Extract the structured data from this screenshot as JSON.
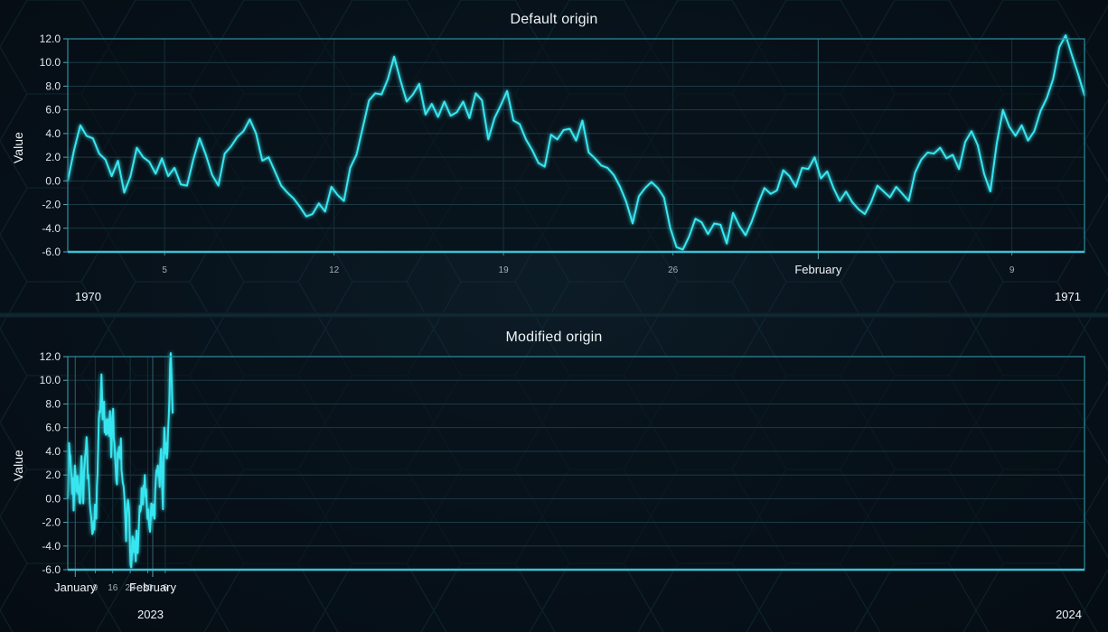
{
  "chart_data": [
    {
      "type": "line",
      "title": "Default origin",
      "ylabel": "Value",
      "ylim": [
        -6.0,
        12.0
      ],
      "yticks": [
        "12.0",
        "10.0",
        "8.0",
        "6.0",
        "4.0",
        "2.0",
        "0.0",
        "-2.0",
        "-4.0",
        "-6.0"
      ],
      "x_axis": "date",
      "x_range": [
        "1970-01-01",
        "1970-02-12"
      ],
      "x_minor_ticks": [
        {
          "date": "1970-01-05",
          "label": "5"
        },
        {
          "date": "1970-01-12",
          "label": "12"
        },
        {
          "date": "1970-01-19",
          "label": "19"
        },
        {
          "date": "1970-01-26",
          "label": "26"
        },
        {
          "date": "1970-02-09",
          "label": "9"
        }
      ],
      "x_major_ticks": [
        {
          "date": "1970-02-01",
          "label": "February"
        }
      ],
      "year_labels": [
        "1970",
        "1971"
      ],
      "series": [
        {
          "color": "#37e6f0",
          "x_start": "1970-01-01",
          "x_end": "1970-02-12",
          "values": [
            0.0,
            2.6,
            4.7,
            3.8,
            3.6,
            2.3,
            1.8,
            0.4,
            1.7,
            -1.0,
            0.4,
            2.8,
            2.0,
            1.6,
            0.6,
            1.9,
            0.4,
            1.1,
            -0.3,
            -0.4,
            1.8,
            3.6,
            2.2,
            0.5,
            -0.4,
            2.3,
            2.9,
            3.7,
            4.2,
            5.2,
            4.0,
            1.7,
            2.0,
            0.8,
            -0.4,
            -1.0,
            -1.5,
            -2.2,
            -3.0,
            -2.8,
            -1.9,
            -2.6,
            -0.5,
            -1.2,
            -1.7,
            1.1,
            2.2,
            4.5,
            6.8,
            7.4,
            7.3,
            8.6,
            10.5,
            8.5,
            6.7,
            7.3,
            8.2,
            5.6,
            6.5,
            5.4,
            6.7,
            5.5,
            5.8,
            6.7,
            5.3,
            7.4,
            6.8,
            3.5,
            5.3,
            6.4,
            7.6,
            5.1,
            4.8,
            3.5,
            2.6,
            1.5,
            1.2,
            3.9,
            3.5,
            4.3,
            4.4,
            3.4,
            5.1,
            2.4,
            1.9,
            1.3,
            1.1,
            0.5,
            -0.5,
            -1.8,
            -3.6,
            -1.3,
            -0.6,
            -0.1,
            -0.6,
            -1.4,
            -4.0,
            -5.6,
            -5.8,
            -4.7,
            -3.2,
            -3.5,
            -4.5,
            -3.6,
            -3.7,
            -5.3,
            -2.7,
            -3.8,
            -4.6,
            -3.4,
            -1.9,
            -0.6,
            -1.1,
            -0.8,
            0.9,
            0.4,
            -0.5,
            1.1,
            1.0,
            2.0,
            0.2,
            0.8,
            -0.6,
            -1.7,
            -0.9,
            -1.8,
            -2.4,
            -2.8,
            -1.8,
            -0.4,
            -0.9,
            -1.4,
            -0.5,
            -1.1,
            -1.7,
            0.7,
            1.8,
            2.4,
            2.3,
            2.8,
            1.9,
            2.2,
            1.0,
            3.3,
            4.2,
            3.0,
            0.6,
            -0.9,
            3.1,
            6.0,
            4.6,
            3.8,
            4.7,
            3.4,
            4.2,
            5.9,
            7.0,
            8.6,
            11.3,
            12.3,
            10.6,
            9.0,
            7.2
          ]
        }
      ]
    },
    {
      "type": "line",
      "title": "Modified origin",
      "ylabel": "Value",
      "ylim": [
        -6.0,
        12.0
      ],
      "yticks": [
        "12.0",
        "10.0",
        "8.0",
        "6.0",
        "4.0",
        "2.0",
        "0.0",
        "-2.0",
        "-4.0",
        "-6.0"
      ],
      "x_axis": "date",
      "x_range": [
        "2022-12-29",
        "2024-02-09"
      ],
      "x_minor_ticks": [
        {
          "date": "2023-01-09",
          "label": "9"
        },
        {
          "date": "2023-01-16",
          "label": "16"
        },
        {
          "date": "2023-01-23",
          "label": "23"
        },
        {
          "date": "2023-01-30",
          "label": "30"
        },
        {
          "date": "2023-02-06",
          "label": "6"
        }
      ],
      "x_major_ticks": [
        {
          "date": "2023-01-01",
          "label": "January"
        },
        {
          "date": "2023-02-01",
          "label": "February"
        }
      ],
      "year_labels": [
        "2023",
        "2024"
      ],
      "series": [
        {
          "color": "#37e6f0",
          "x_start": "2022-12-29",
          "x_end": "2023-02-09",
          "values": [
            0.0,
            2.6,
            4.7,
            3.8,
            3.6,
            2.3,
            1.8,
            0.4,
            1.7,
            -1.0,
            0.4,
            2.8,
            2.0,
            1.6,
            0.6,
            1.9,
            0.4,
            1.1,
            -0.3,
            -0.4,
            1.8,
            3.6,
            2.2,
            0.5,
            -0.4,
            2.3,
            2.9,
            3.7,
            4.2,
            5.2,
            4.0,
            1.7,
            2.0,
            0.8,
            -0.4,
            -1.0,
            -1.5,
            -2.2,
            -3.0,
            -2.8,
            -1.9,
            -2.6,
            -0.5,
            -1.2,
            -1.7,
            1.1,
            2.2,
            4.5,
            6.8,
            7.4,
            7.3,
            8.6,
            10.5,
            8.5,
            6.7,
            7.3,
            8.2,
            5.6,
            6.5,
            5.4,
            6.7,
            5.5,
            5.8,
            6.7,
            5.3,
            7.4,
            6.8,
            3.5,
            5.3,
            6.4,
            7.6,
            5.1,
            4.8,
            3.5,
            2.6,
            1.5,
            1.2,
            3.9,
            3.5,
            4.3,
            4.4,
            3.4,
            5.1,
            2.4,
            1.9,
            1.3,
            1.1,
            0.5,
            -0.5,
            -1.8,
            -3.6,
            -1.3,
            -0.6,
            -0.1,
            -0.6,
            -1.4,
            -4.0,
            -5.6,
            -5.8,
            -4.7,
            -3.2,
            -3.5,
            -4.5,
            -3.6,
            -3.7,
            -5.3,
            -2.7,
            -3.8,
            -4.6,
            -3.4,
            -1.9,
            -0.6,
            -1.1,
            -0.8,
            0.9,
            0.4,
            -0.5,
            1.1,
            1.0,
            2.0,
            0.2,
            0.8,
            -0.6,
            -1.7,
            -0.9,
            -1.8,
            -2.4,
            -2.8,
            -1.8,
            -0.4,
            -0.9,
            -1.4,
            -0.5,
            -1.1,
            -1.7,
            0.7,
            1.8,
            2.4,
            2.3,
            2.8,
            1.9,
            2.2,
            1.0,
            3.3,
            4.2,
            3.0,
            0.6,
            -0.9,
            3.1,
            6.0,
            4.6,
            3.8,
            4.7,
            3.4,
            4.2,
            5.9,
            7.0,
            8.6,
            11.3,
            12.3,
            10.6,
            9.0,
            7.2
          ]
        }
      ]
    }
  ]
}
